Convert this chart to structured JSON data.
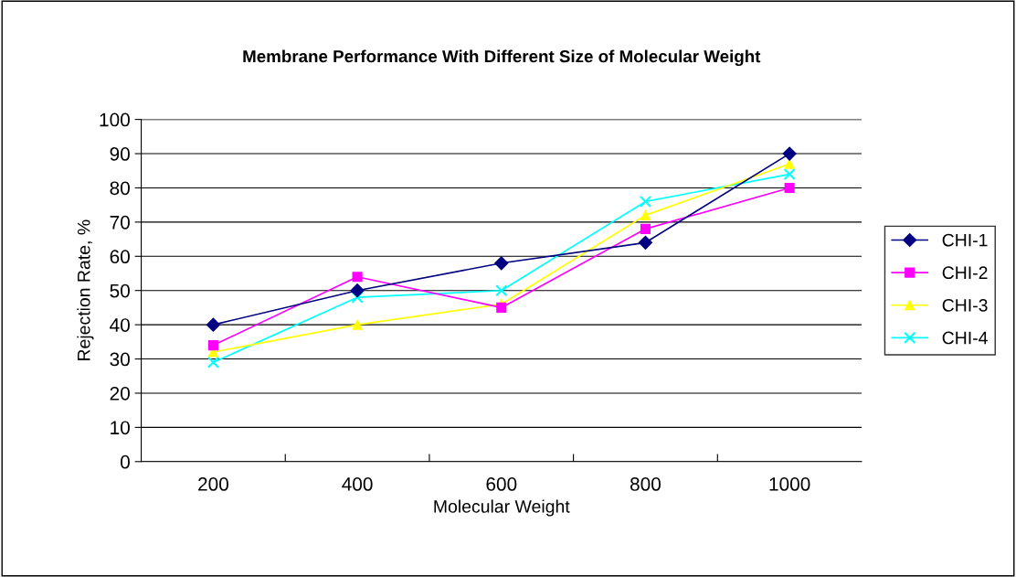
{
  "chart_data": {
    "type": "line",
    "title": "Membrane Performance With Different Size of Molecular Weight",
    "xlabel": "Molecular Weight",
    "ylabel": "Rejection Rate, %",
    "categories": [
      "200",
      "400",
      "600",
      "800",
      "1000"
    ],
    "series": [
      {
        "name": "CHI-1",
        "color": "#000080",
        "marker": "diamond",
        "values": [
          40,
          50,
          58,
          64,
          90
        ]
      },
      {
        "name": "CHI-2",
        "color": "#ff00ff",
        "marker": "square",
        "values": [
          34,
          54,
          45,
          68,
          80
        ]
      },
      {
        "name": "CHI-3",
        "color": "#ffff00",
        "marker": "triangle",
        "values": [
          32,
          40,
          46,
          72,
          87
        ]
      },
      {
        "name": "CHI-4",
        "color": "#00ffff",
        "marker": "cross",
        "values": [
          29,
          48,
          50,
          76,
          84
        ]
      }
    ],
    "ylim": [
      0,
      100
    ],
    "yticks": [
      0,
      10,
      20,
      30,
      40,
      50,
      60,
      70,
      80,
      90,
      100
    ],
    "grid": "y",
    "legend": "right"
  }
}
